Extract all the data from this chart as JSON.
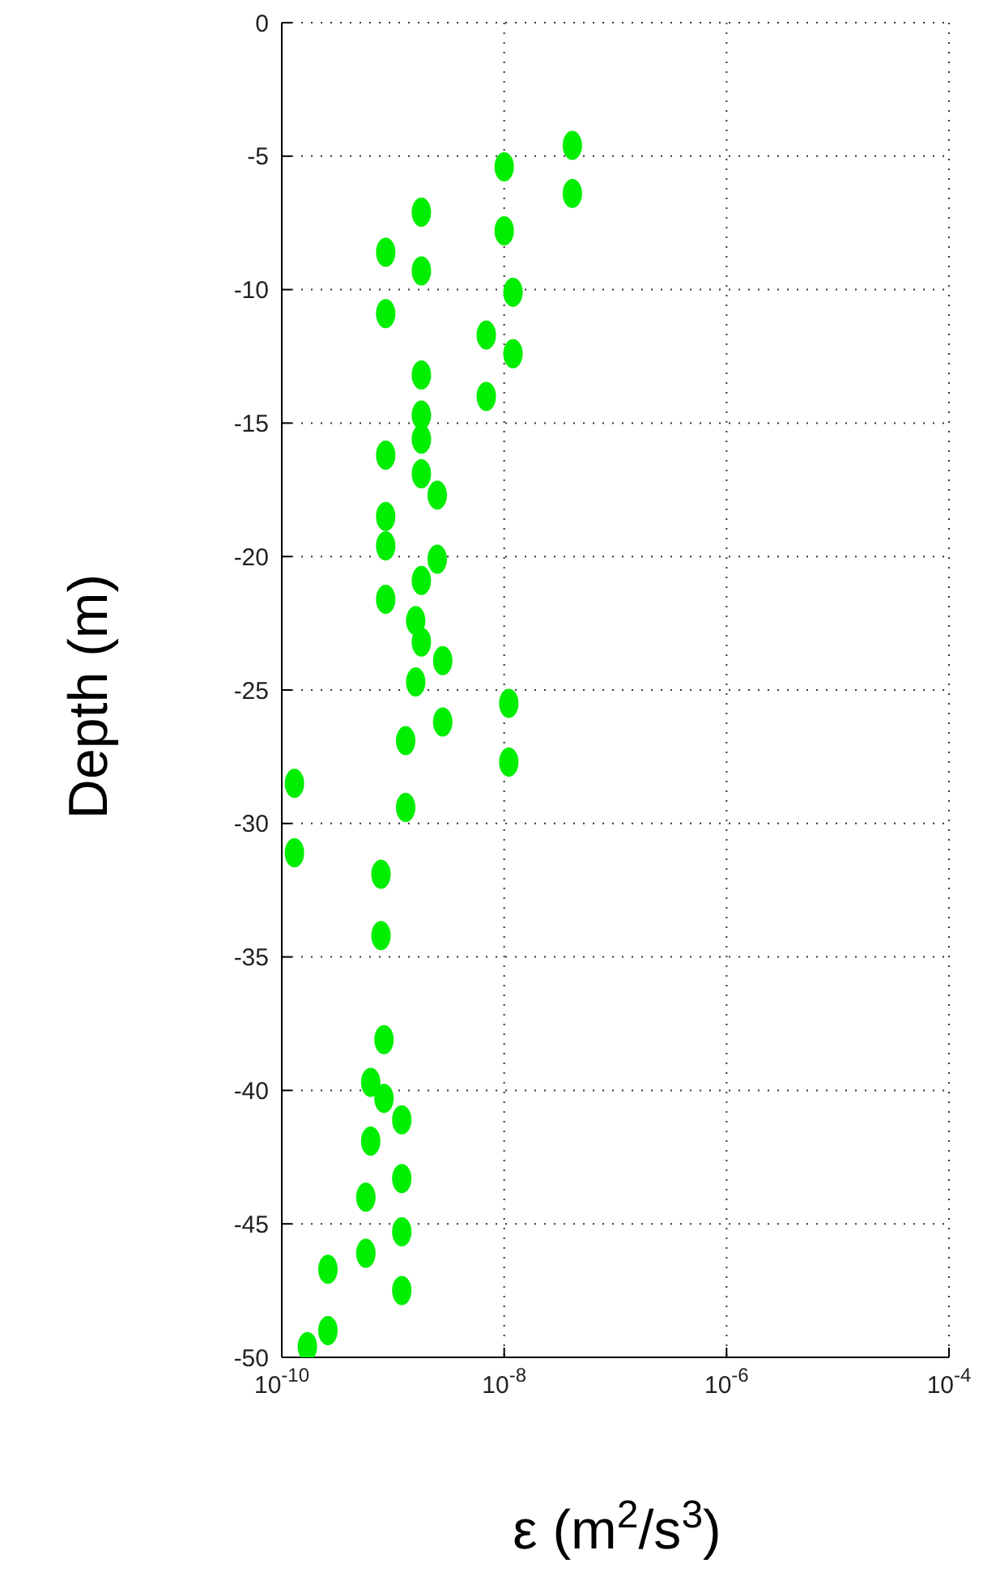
{
  "chart_data": {
    "type": "scatter",
    "xlabel": "ε (m$^{2}$/s$^{3}$)",
    "ylabel": "Depth (m)",
    "log": "x",
    "grid": true,
    "marker": "circle",
    "legend": false,
    "xlim": [
      1e-10,
      0.0001
    ],
    "xticks": [
      {
        "value": 1e-10,
        "label": "10$^{-10}$"
      },
      {
        "value": 1e-08,
        "label": "10$^{-8}$"
      },
      {
        "value": 1e-06,
        "label": "10$^{-6}$"
      },
      {
        "value": 0.0001,
        "label": "10$^{-4}$"
      }
    ],
    "ylim": [
      -50,
      0
    ],
    "yticks": [
      -50,
      -45,
      -40,
      -35,
      -30,
      -25,
      -20,
      -15,
      -10,
      -5,
      0
    ],
    "series": [
      {
        "color": "#00ee00",
        "x": [
          4.1e-08,
          4.1e-08,
          1e-08,
          1e-08,
          1.8e-09,
          1.8e-09,
          8.6e-10,
          8.6e-10,
          1.2e-08,
          1.2e-08,
          6.9e-09,
          6.9e-09,
          1.8e-09,
          1.8e-09,
          1.8e-09,
          8.6e-10,
          1.8e-09,
          2.5e-09,
          8.6e-10,
          8.6e-10,
          2.5e-09,
          1.8e-09,
          8.6e-10,
          1.6e-09,
          1.8e-09,
          2.8e-09,
          1.6e-09,
          1.1e-08,
          2.8e-09,
          1.3e-09,
          1.1e-08,
          1.3e-10,
          1.3e-09,
          1.3e-10,
          7.8e-10,
          7.8e-10,
          8.3e-10,
          6.3e-10,
          8.3e-10,
          1.2e-09,
          6.3e-10,
          1.2e-09,
          5.7e-10,
          1.2e-09,
          5.7e-10,
          1.2e-09,
          2.6e-10,
          2.6e-10,
          1.7e-10
        ],
        "values": [
          -4.6,
          -6.4,
          -5.4,
          -7.8,
          -7.1,
          -9.3,
          -8.6,
          -10.9,
          -10.1,
          -12.4,
          -11.7,
          -14.0,
          -13.2,
          -14.7,
          -15.6,
          -16.2,
          -16.9,
          -17.7,
          -18.5,
          -19.6,
          -20.1,
          -20.9,
          -21.6,
          -22.4,
          -23.2,
          -23.9,
          -24.7,
          -25.5,
          -26.2,
          -26.9,
          -27.7,
          -28.5,
          -29.4,
          -31.1,
          -31.9,
          -34.2,
          -38.1,
          -39.7,
          -40.3,
          -41.1,
          -41.9,
          -43.3,
          -44.0,
          -45.3,
          -46.1,
          -47.5,
          -46.7,
          -49.0,
          -49.6
        ]
      }
    ]
  }
}
